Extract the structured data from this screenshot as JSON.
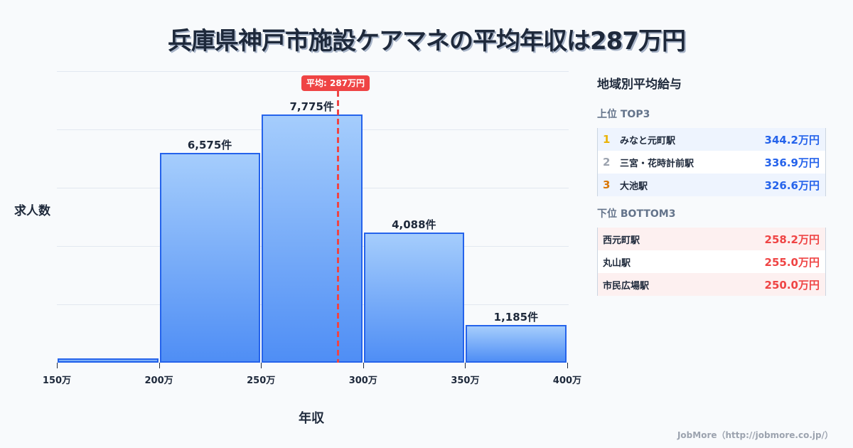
{
  "title": "兵庫県神戸市施設ケアマネの平均年収は287万円",
  "chart_data": {
    "type": "bar",
    "title": "兵庫県神戸市施設ケアマネの平均年収は287万円",
    "xlabel": "年収",
    "ylabel": "求人数",
    "categories": [
      "150万-200万",
      "200万-250万",
      "250万-300万",
      "300万-350万",
      "350万-400万"
    ],
    "values": [
      60,
      6575,
      7775,
      4088,
      1185
    ],
    "value_labels": [
      "",
      "6,575件",
      "7,775件",
      "4,088件",
      "1,185件"
    ],
    "x_ticks": [
      "150万",
      "200万",
      "250万",
      "300万",
      "350万",
      "400万"
    ],
    "xlim": [
      150,
      400
    ],
    "grid": true,
    "mean": {
      "value": 287,
      "label": "平均: 287万円"
    }
  },
  "panel": {
    "title": "地域別平均給与",
    "top_label": "上位 TOP3",
    "top": [
      {
        "rank": "1",
        "name": "みなと元町駅",
        "value": "344.2万円",
        "rank_color": "#eab308"
      },
      {
        "rank": "2",
        "name": "三宮・花時計前駅",
        "value": "336.9万円",
        "rank_color": "#9ca3af"
      },
      {
        "rank": "3",
        "name": "大池駅",
        "value": "326.6万円",
        "rank_color": "#d97706"
      }
    ],
    "bottom_label": "下位 BOTTOM3",
    "bottom": [
      {
        "name": "西元町駅",
        "value": "258.2万円"
      },
      {
        "name": "丸山駅",
        "value": "255.0万円"
      },
      {
        "name": "市民広場駅",
        "value": "250.0万円"
      }
    ]
  },
  "credit": "JobMore（http://jobmore.co.jp/）",
  "colors": {
    "bar_border": "#2563eb",
    "mean_line": "#ef4444",
    "top_value": "#2563eb",
    "bottom_value": "#ef4444"
  }
}
